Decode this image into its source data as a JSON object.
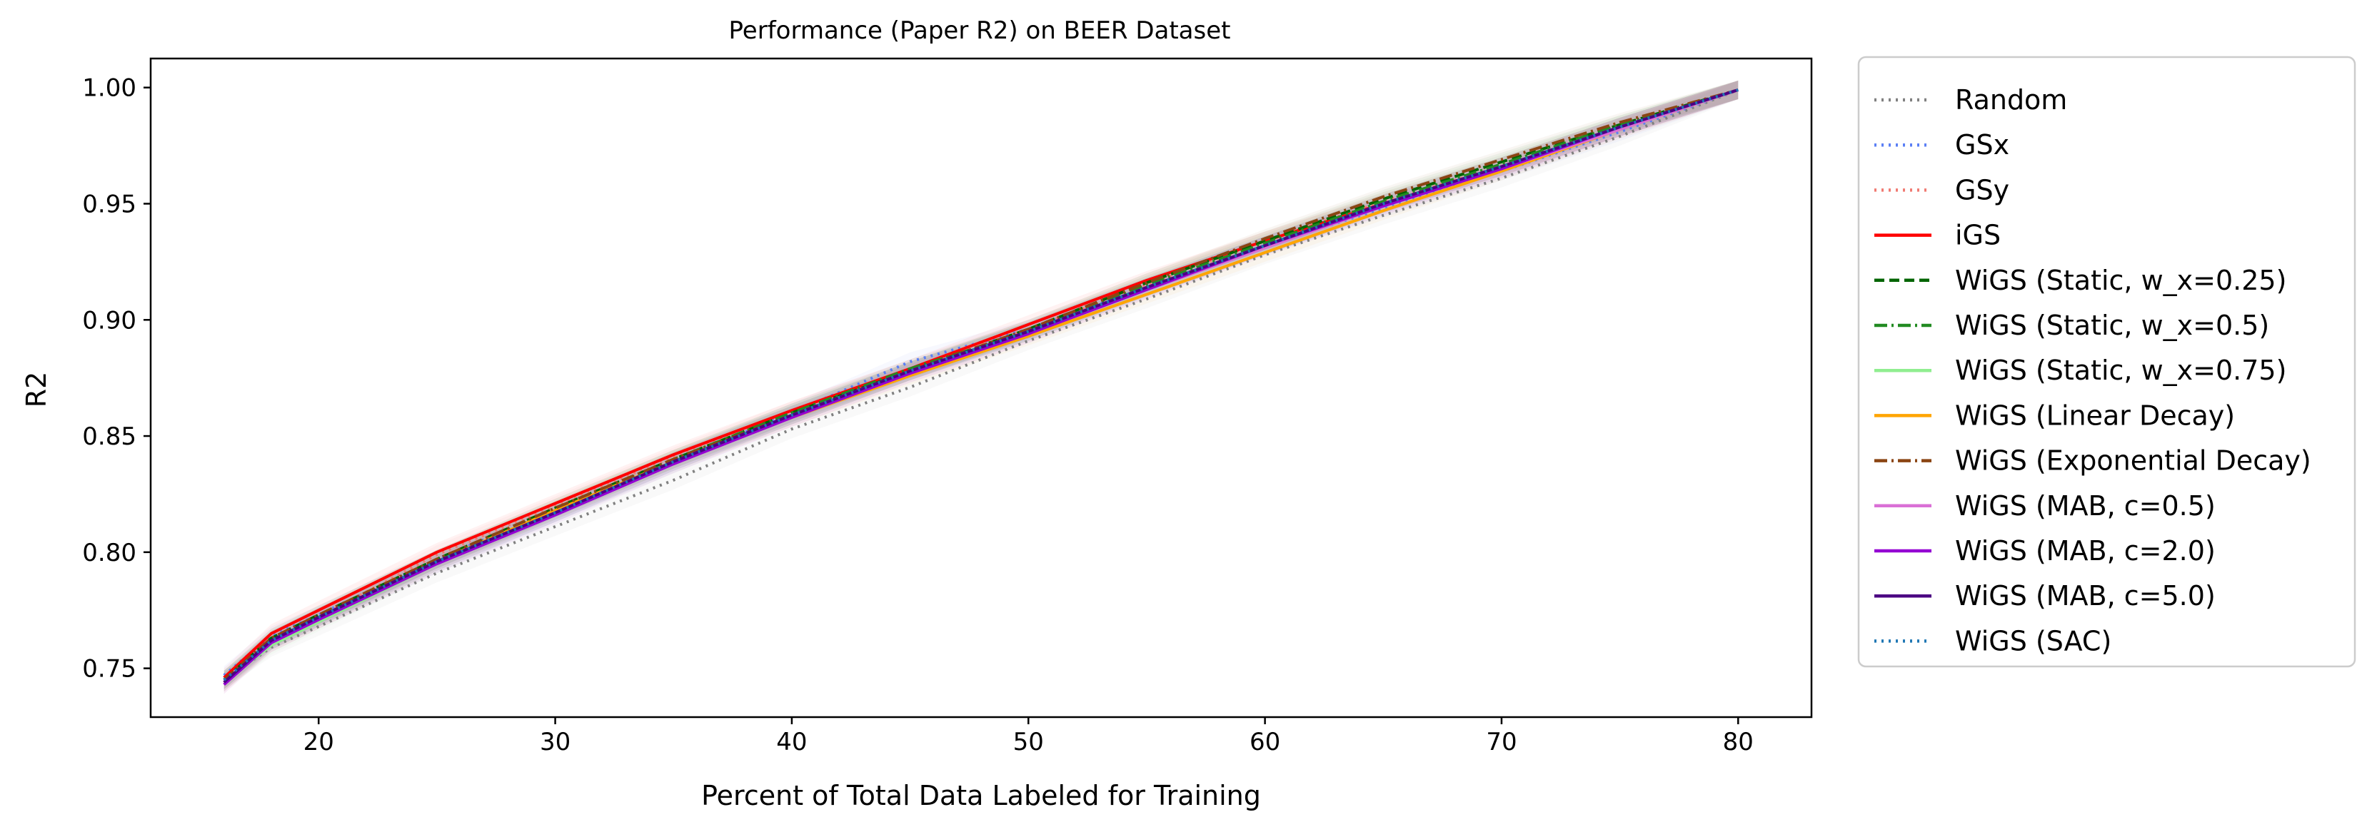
{
  "chart_data": {
    "type": "line",
    "title": "Performance (Paper R2) on BEER Dataset",
    "xlabel": "Percent of Total Data Labeled for Training",
    "ylabel": "R2",
    "xlim": [
      12.9,
      83.1
    ],
    "ylim": [
      0.729,
      1.0125
    ],
    "xticks": [
      20,
      30,
      40,
      50,
      60,
      70,
      80
    ],
    "xtick_labels": [
      "20",
      "30",
      "40",
      "50",
      "60",
      "70",
      "80"
    ],
    "yticks": [
      0.75,
      0.8,
      0.85,
      0.9,
      0.95,
      1.0
    ],
    "ytick_labels": [
      "0.75",
      "0.80",
      "0.85",
      "0.90",
      "0.95",
      "1.00"
    ],
    "grid": false,
    "legend_position": "outside-right",
    "series": [
      {
        "name": "Random",
        "color": "#808080",
        "dash": "dotted",
        "x": [
          16,
          18,
          20,
          25,
          30,
          35,
          40,
          45,
          50,
          55,
          60,
          65,
          70,
          75,
          80
        ],
        "y": [
          0.745,
          0.759,
          0.768,
          0.791,
          0.811,
          0.831,
          0.853,
          0.871,
          0.891,
          0.909,
          0.928,
          0.945,
          0.961,
          0.979,
          0.999
        ]
      },
      {
        "name": "GSx",
        "color": "#5b7ff5",
        "dash": "dotted",
        "x": [
          16,
          18,
          20,
          25,
          30,
          35,
          40,
          45,
          50,
          55,
          60,
          65,
          70,
          75,
          80
        ],
        "y": [
          0.747,
          0.764,
          0.773,
          0.797,
          0.818,
          0.839,
          0.86,
          0.882,
          0.896,
          0.914,
          0.932,
          0.948,
          0.964,
          0.981,
          0.999
        ]
      },
      {
        "name": "GSy",
        "color": "#f07a72",
        "dash": "dotted",
        "x": [
          16,
          18,
          20,
          25,
          30,
          35,
          40,
          45,
          50,
          55,
          60,
          65,
          70,
          75,
          80
        ],
        "y": [
          0.743,
          0.762,
          0.772,
          0.799,
          0.82,
          0.841,
          0.861,
          0.879,
          0.896,
          0.915,
          0.934,
          0.951,
          0.966,
          0.983,
          0.999
        ]
      },
      {
        "name": "iGS",
        "color": "#ff0000",
        "dash": "solid",
        "x": [
          16,
          18,
          20,
          25,
          30,
          35,
          40,
          45,
          50,
          55,
          60,
          65,
          70,
          75,
          80
        ],
        "y": [
          0.746,
          0.765,
          0.775,
          0.8,
          0.821,
          0.842,
          0.861,
          0.879,
          0.898,
          0.917,
          0.934,
          0.95,
          0.966,
          0.983,
          0.999
        ]
      },
      {
        "name": "WiGS (Static, w_x=0.25)",
        "color": "#006400",
        "dash": "dashed",
        "x": [
          16,
          18,
          20,
          25,
          30,
          35,
          40,
          45,
          50,
          55,
          60,
          65,
          70,
          75,
          80
        ],
        "y": [
          0.745,
          0.763,
          0.773,
          0.797,
          0.819,
          0.84,
          0.86,
          0.878,
          0.896,
          0.916,
          0.934,
          0.952,
          0.968,
          0.984,
          0.999
        ]
      },
      {
        "name": "WiGS (Static, w_x=0.5)",
        "color": "#228b22",
        "dash": "dashdot",
        "x": [
          16,
          18,
          20,
          25,
          30,
          35,
          40,
          45,
          50,
          55,
          60,
          65,
          70,
          75,
          80
        ],
        "y": [
          0.745,
          0.762,
          0.772,
          0.797,
          0.818,
          0.84,
          0.86,
          0.879,
          0.895,
          0.915,
          0.933,
          0.951,
          0.967,
          0.984,
          0.999
        ]
      },
      {
        "name": "WiGS (Static, w_x=0.75)",
        "color": "#90ee90",
        "dash": "solid",
        "x": [
          16,
          18,
          20,
          25,
          30,
          35,
          40,
          45,
          50,
          55,
          60,
          65,
          70,
          75,
          80
        ],
        "y": [
          0.744,
          0.76,
          0.77,
          0.795,
          0.817,
          0.838,
          0.859,
          0.878,
          0.895,
          0.914,
          0.932,
          0.95,
          0.966,
          0.983,
          0.999
        ]
      },
      {
        "name": "WiGS (Linear Decay)",
        "color": "#ffa500",
        "dash": "solid",
        "x": [
          16,
          18,
          20,
          25,
          30,
          35,
          40,
          45,
          50,
          55,
          60,
          65,
          70,
          75,
          80
        ],
        "y": [
          0.744,
          0.761,
          0.771,
          0.796,
          0.818,
          0.839,
          0.858,
          0.876,
          0.893,
          0.911,
          0.929,
          0.947,
          0.964,
          0.982,
          0.999
        ]
      },
      {
        "name": "WiGS (Exponential Decay)",
        "color": "#8b4513",
        "dash": "dashdot",
        "x": [
          16,
          18,
          20,
          25,
          30,
          35,
          40,
          45,
          50,
          55,
          60,
          65,
          70,
          75,
          80
        ],
        "y": [
          0.745,
          0.763,
          0.773,
          0.797,
          0.819,
          0.84,
          0.859,
          0.878,
          0.896,
          0.916,
          0.935,
          0.953,
          0.969,
          0.985,
          0.999
        ]
      },
      {
        "name": "WiGS (MAB, c=0.5)",
        "color": "#da70d6",
        "dash": "solid",
        "x": [
          16,
          18,
          20,
          25,
          30,
          35,
          40,
          45,
          50,
          55,
          60,
          65,
          70,
          75,
          80
        ],
        "y": [
          0.744,
          0.761,
          0.771,
          0.795,
          0.817,
          0.838,
          0.858,
          0.877,
          0.894,
          0.913,
          0.931,
          0.949,
          0.965,
          0.982,
          0.999
        ]
      },
      {
        "name": "WiGS (MAB, c=2.0)",
        "color": "#9400d3",
        "dash": "solid",
        "x": [
          16,
          18,
          20,
          25,
          30,
          35,
          40,
          45,
          50,
          55,
          60,
          65,
          70,
          75,
          80
        ],
        "y": [
          0.743,
          0.761,
          0.771,
          0.795,
          0.816,
          0.838,
          0.858,
          0.877,
          0.894,
          0.913,
          0.932,
          0.949,
          0.965,
          0.983,
          0.999
        ]
      },
      {
        "name": "WiGS (MAB, c=5.0)",
        "color": "#4b0082",
        "dash": "solid",
        "x": [
          16,
          18,
          20,
          25,
          30,
          35,
          40,
          45,
          50,
          55,
          60,
          65,
          70,
          75,
          80
        ],
        "y": [
          0.744,
          0.762,
          0.772,
          0.796,
          0.817,
          0.839,
          0.859,
          0.878,
          0.895,
          0.914,
          0.932,
          0.95,
          0.966,
          0.983,
          0.999
        ]
      },
      {
        "name": "WiGS (SAC)",
        "color": "#1f77b4",
        "dash": "dotted",
        "x": [
          16,
          18,
          20,
          25,
          30,
          35,
          40,
          45,
          50,
          55,
          60,
          65,
          70,
          75,
          80
        ],
        "y": [
          0.745,
          0.762,
          0.772,
          0.796,
          0.817,
          0.839,
          0.859,
          0.878,
          0.895,
          0.914,
          0.932,
          0.95,
          0.966,
          0.983,
          0.999
        ]
      }
    ]
  }
}
